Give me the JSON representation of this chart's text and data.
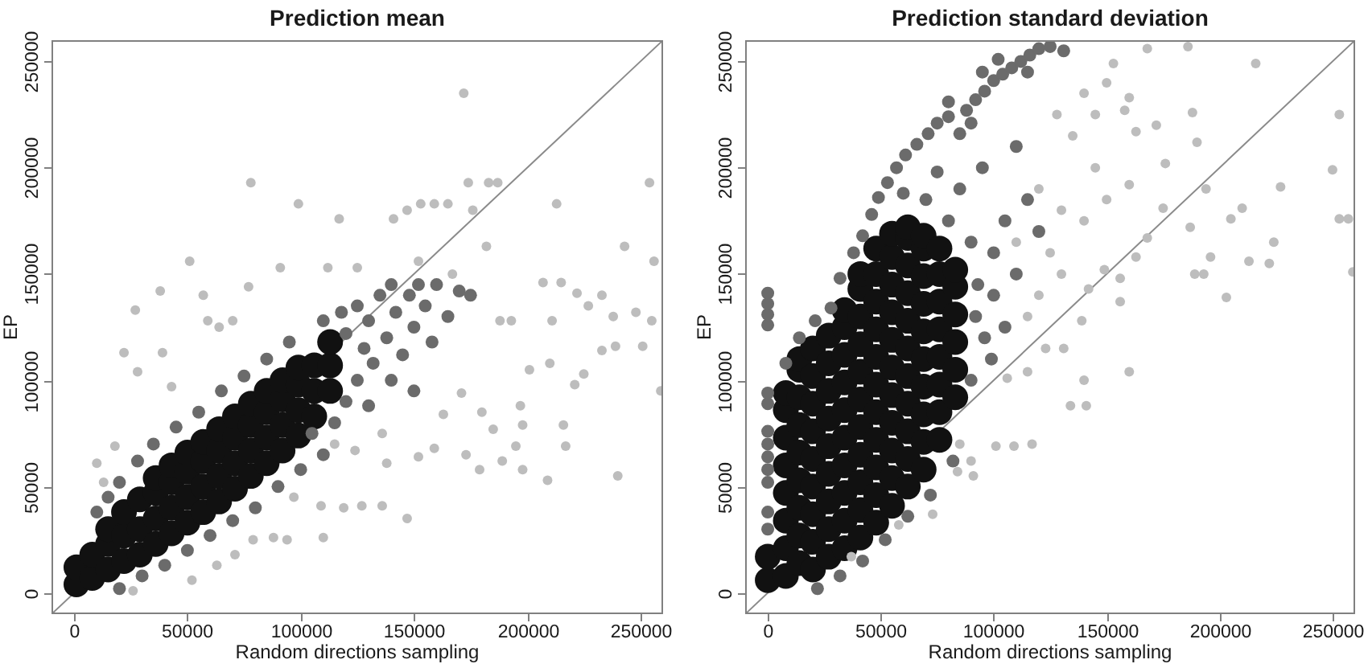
{
  "chart_data": [
    {
      "type": "scatter",
      "title": "Prediction mean",
      "xlabel": "Random directions sampling",
      "ylabel": "EP",
      "xlim": [
        -10000,
        260000
      ],
      "ylim": [
        -10000,
        260000
      ],
      "xticks": [
        0,
        50000,
        100000,
        150000,
        200000,
        250000
      ],
      "yticks": [
        0,
        50000,
        100000,
        150000,
        200000,
        250000
      ],
      "marker": "circle",
      "series": [
        {
          "type": "line",
          "marker": "none",
          "color": "#8a8a8a",
          "x": [
            -10000,
            260000
          ],
          "values": [
            -10000,
            260000
          ]
        },
        {
          "color": "#bdbdbd",
          "x": [
            172000,
            78000,
            99000,
            117000,
            141000,
            147000,
            153000,
            159000,
            165000,
            174000,
            176000,
            183000,
            187000,
            213000,
            254000,
            243000,
            256000,
            182000,
            51000,
            38000,
            27000,
            91000,
            112000,
            125000,
            152000,
            167000,
            77000,
            57000,
            59000,
            64000,
            70000,
            207000,
            215000,
            222000,
            233000,
            227000,
            238000,
            248000,
            255000,
            188000,
            193000,
            211000,
            259000,
            251000,
            239000,
            233000,
            225000,
            221000,
            216000,
            217000,
            209000,
            240000,
            210000,
            201000,
            197000,
            198000,
            195000,
            198000,
            189000,
            185000,
            180000,
            173000,
            179000,
            171000,
            163000,
            159000,
            152000,
            147000,
            136000,
            127000,
            110000,
            109000,
            97000,
            88000,
            94000,
            79000,
            71000,
            63000,
            52000,
            26000,
            39000,
            22000,
            28000,
            43000,
            18000,
            10000,
            13000,
            115000,
            124000,
            136000,
            119000,
            138000
          ],
          "values": [
            235000,
            193000,
            183000,
            176000,
            176000,
            180000,
            183000,
            183000,
            183000,
            193000,
            180000,
            193000,
            193000,
            183000,
            193000,
            163000,
            156000,
            163000,
            156000,
            142000,
            133000,
            153000,
            153000,
            153000,
            156000,
            150000,
            144000,
            140000,
            128000,
            125000,
            128000,
            146000,
            146000,
            141000,
            140000,
            135000,
            130000,
            132000,
            128000,
            128000,
            128000,
            128000,
            95000,
            116000,
            116000,
            114000,
            103000,
            98000,
            79000,
            69000,
            53000,
            55000,
            108000,
            105000,
            88000,
            79000,
            69000,
            58000,
            62000,
            77000,
            85000,
            65000,
            58000,
            94000,
            84000,
            68000,
            64000,
            35000,
            41000,
            41000,
            26000,
            41000,
            45000,
            26000,
            25000,
            25000,
            18000,
            13000,
            6000,
            1000,
            113000,
            113000,
            104000,
            97000,
            69000,
            61000,
            52000,
            70000,
            67000,
            75000,
            40000,
            61000
          ]
        },
        {
          "color": "#6b6b6b",
          "x": [
            10000,
            15000,
            20000,
            28000,
            35000,
            45000,
            55000,
            65000,
            75000,
            85000,
            95000,
            20000,
            30000,
            40000,
            50000,
            60000,
            70000,
            80000,
            90000,
            100000,
            110000,
            105000,
            115000,
            120000,
            125000,
            110000,
            118000,
            120000,
            125000,
            128000,
            130000,
            135000,
            138000,
            140000,
            142000,
            145000,
            148000,
            150000,
            152000,
            155000,
            158000,
            160000,
            165000,
            170000,
            175000,
            132000,
            140000,
            150000,
            130000
          ],
          "values": [
            38000,
            45000,
            52000,
            62000,
            70000,
            78000,
            85000,
            95000,
            102000,
            110000,
            118000,
            2000,
            8000,
            13000,
            20000,
            27000,
            34000,
            40000,
            50000,
            58000,
            65000,
            75000,
            80000,
            90000,
            100000,
            128000,
            132000,
            122000,
            135000,
            115000,
            128000,
            140000,
            120000,
            145000,
            132000,
            112000,
            140000,
            125000,
            145000,
            135000,
            118000,
            145000,
            130000,
            142000,
            140000,
            108000,
            100000,
            95000,
            88000
          ]
        },
        {
          "color": "#111111",
          "x": [
            1000,
            1000,
            8000,
            8000,
            15000,
            15000,
            15000,
            22000,
            22000,
            22000,
            29000,
            29000,
            29000,
            36000,
            36000,
            36000,
            36000,
            43000,
            43000,
            43000,
            43000,
            50000,
            50000,
            50000,
            50000,
            57000,
            57000,
            57000,
            57000,
            64000,
            64000,
            64000,
            64000,
            71000,
            71000,
            71000,
            71000,
            78000,
            78000,
            78000,
            78000,
            85000,
            85000,
            85000,
            85000,
            92000,
            92000,
            92000,
            92000,
            99000,
            99000,
            99000,
            99000,
            106000,
            106000,
            106000,
            113000,
            113000,
            113000
          ],
          "values": [
            4000,
            12000,
            7000,
            18000,
            11000,
            23000,
            30000,
            15000,
            27000,
            38000,
            18000,
            30000,
            44000,
            23000,
            35000,
            47000,
            54000,
            28000,
            40000,
            52000,
            60000,
            33000,
            45000,
            57000,
            66000,
            38000,
            50000,
            62000,
            71000,
            43000,
            55000,
            67000,
            77000,
            49000,
            61000,
            73000,
            83000,
            55000,
            67000,
            79000,
            89000,
            61000,
            73000,
            85000,
            95000,
            67000,
            79000,
            91000,
            100000,
            74000,
            86000,
            98000,
            106000,
            83000,
            95000,
            107000,
            95000,
            107000,
            118000
          ]
        }
      ]
    },
    {
      "type": "scatter",
      "title": "Prediction standard deviation",
      "xlabel": "Random directions sampling",
      "ylabel": "EP",
      "xlim": [
        -10000,
        260000
      ],
      "ylim": [
        -10000,
        260000
      ],
      "xticks": [
        0,
        50000,
        100000,
        150000,
        200000,
        250000
      ],
      "yticks": [
        0,
        50000,
        100000,
        150000,
        200000,
        250000
      ],
      "marker": "circle",
      "series": [
        {
          "type": "line",
          "marker": "none",
          "color": "#8a8a8a",
          "x": [
            -10000,
            260000
          ],
          "values": [
            -10000,
            260000
          ]
        },
        {
          "color": "#bdbdbd",
          "x": [
            216000,
            253000,
            250000,
            253000,
            257000,
            259000,
            227000,
            205000,
            210000,
            187000,
            196000,
            189000,
            193000,
            203000,
            213000,
            222000,
            224000,
            194000,
            190000,
            188000,
            176000,
            172000,
            163000,
            158000,
            160000,
            153000,
            168000,
            186000,
            175000,
            160000,
            168000,
            163000,
            156000,
            149000,
            142000,
            156000,
            139000,
            160000,
            140000,
            134000,
            141000,
            117000,
            109000,
            101000,
            91000,
            84000,
            73000,
            58000,
            37000,
            131000,
            123000,
            115000,
            106000,
            85000,
            90000,
            120000,
            130000,
            125000,
            140000,
            145000,
            135000,
            128000,
            150000,
            115000,
            120000,
            130000,
            110000,
            140000,
            150000,
            145000
          ],
          "values": [
            249000,
            225000,
            199000,
            176000,
            176000,
            151000,
            191000,
            176000,
            181000,
            172000,
            158000,
            150000,
            150000,
            139000,
            156000,
            155000,
            165000,
            190000,
            212000,
            226000,
            202000,
            220000,
            217000,
            227000,
            233000,
            249000,
            256000,
            257000,
            181000,
            192000,
            167000,
            158000,
            148000,
            152000,
            143000,
            137000,
            128000,
            104000,
            100000,
            88000,
            88000,
            70000,
            69000,
            69000,
            55000,
            57000,
            37000,
            32000,
            17000,
            115000,
            115000,
            104000,
            101000,
            70000,
            62000,
            190000,
            180000,
            160000,
            175000,
            200000,
            215000,
            225000,
            185000,
            130000,
            140000,
            150000,
            165000,
            235000,
            240000,
            225000
          ]
        },
        {
          "color": "#6b6b6b",
          "x": [
            0,
            0,
            0,
            0,
            0,
            0,
            0,
            0,
            0,
            0,
            0,
            0,
            0,
            32000,
            38000,
            42000,
            46000,
            49000,
            53000,
            57000,
            61000,
            66000,
            71000,
            75000,
            80000,
            85000,
            88000,
            92000,
            96000,
            100000,
            104000,
            108000,
            112000,
            116000,
            120000,
            125000,
            131000,
            80000,
            95000,
            102000,
            115000,
            90000,
            8000,
            14000,
            21000,
            28000,
            92000,
            96000,
            93000,
            100000,
            90000,
            90000,
            80000,
            70000,
            60000,
            105000,
            99000,
            82000,
            72000,
            62000,
            52000,
            42000,
            32000,
            22000,
            100000,
            110000,
            105000,
            115000,
            120000,
            85000,
            75000,
            95000,
            110000
          ],
          "values": [
            30000,
            38000,
            52000,
            58000,
            64000,
            70000,
            76000,
            89000,
            94000,
            126000,
            131000,
            136000,
            141000,
            148000,
            160000,
            168000,
            178000,
            186000,
            193000,
            200000,
            206000,
            211000,
            216000,
            221000,
            224000,
            216000,
            227000,
            232000,
            236000,
            241000,
            244000,
            247000,
            250000,
            253000,
            256000,
            257000,
            255000,
            231000,
            245000,
            251000,
            245000,
            221000,
            108000,
            120000,
            128000,
            134000,
            130000,
            120000,
            145000,
            140000,
            100000,
            165000,
            175000,
            185000,
            188000,
            125000,
            110000,
            62000,
            46000,
            36000,
            25000,
            15000,
            8000,
            2000,
            160000,
            150000,
            175000,
            185000,
            170000,
            190000,
            198000,
            200000,
            210000
          ]
        },
        {
          "color": "#111111",
          "x": [
            0,
            0,
            8000,
            8000,
            8000,
            8000,
            8000,
            8000,
            8000,
            8000,
            14000,
            14000,
            14000,
            14000,
            14000,
            14000,
            14000,
            14000,
            14000,
            20000,
            20000,
            20000,
            20000,
            20000,
            20000,
            20000,
            20000,
            20000,
            27000,
            27000,
            27000,
            27000,
            27000,
            27000,
            27000,
            27000,
            27000,
            34000,
            34000,
            34000,
            34000,
            34000,
            34000,
            34000,
            34000,
            34000,
            34000,
            41000,
            41000,
            41000,
            41000,
            41000,
            41000,
            41000,
            41000,
            41000,
            41000,
            41000,
            48000,
            48000,
            48000,
            48000,
            48000,
            48000,
            48000,
            48000,
            48000,
            48000,
            48000,
            55000,
            55000,
            55000,
            55000,
            55000,
            55000,
            55000,
            55000,
            55000,
            55000,
            55000,
            62000,
            62000,
            62000,
            62000,
            62000,
            62000,
            62000,
            62000,
            62000,
            62000,
            62000,
            69000,
            69000,
            69000,
            69000,
            69000,
            69000,
            69000,
            69000,
            69000,
            69000,
            76000,
            76000,
            76000,
            76000,
            76000,
            76000,
            76000,
            76000,
            83000,
            83000,
            83000,
            83000,
            83000,
            83000
          ],
          "values": [
            6000,
            17000,
            8000,
            21000,
            34000,
            47000,
            60000,
            73000,
            86000,
            94000,
            14000,
            27000,
            40000,
            53000,
            66000,
            79000,
            92000,
            105000,
            110000,
            11000,
            24000,
            37000,
            50000,
            63000,
            76000,
            89000,
            102000,
            115000,
            17000,
            30000,
            43000,
            56000,
            69000,
            82000,
            95000,
            108000,
            121000,
            21000,
            34000,
            47000,
            60000,
            73000,
            86000,
            99000,
            112000,
            125000,
            133000,
            26000,
            39000,
            52000,
            65000,
            78000,
            91000,
            104000,
            117000,
            130000,
            143000,
            150000,
            33000,
            46000,
            59000,
            72000,
            85000,
            98000,
            111000,
            124000,
            137000,
            150000,
            162000,
            41000,
            54000,
            67000,
            80000,
            93000,
            106000,
            119000,
            132000,
            145000,
            158000,
            169000,
            50000,
            63000,
            76000,
            89000,
            102000,
            115000,
            128000,
            141000,
            154000,
            167000,
            172000,
            58000,
            71000,
            84000,
            97000,
            110000,
            123000,
            136000,
            149000,
            162000,
            168000,
            72000,
            85000,
            98000,
            111000,
            124000,
            137000,
            150000,
            162000,
            92000,
            105000,
            118000,
            131000,
            144000,
            152000
          ]
        }
      ]
    }
  ]
}
